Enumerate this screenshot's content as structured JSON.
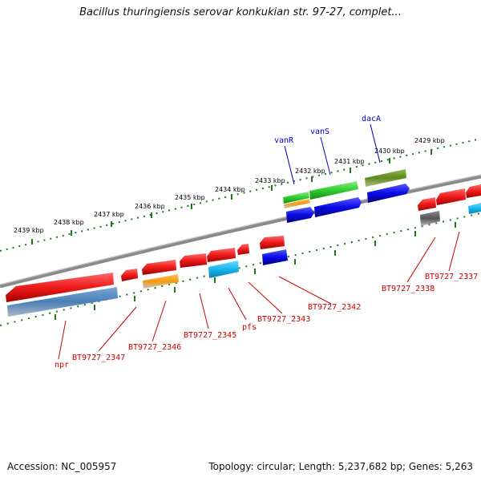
{
  "title": "Bacillus thuringiensis serovar konkukian str. 97-27, complet...",
  "accession_text": "Accession: NC_005957",
  "topology_text": "Topology: circular; Length: 5,237,682 bp; Genes: 5,263",
  "scale_labels": [
    "2439 kbp",
    "2438 kbp",
    "2437 kbp",
    "2436 kbp",
    "2435 kbp",
    "2434 kbp",
    "2433 kbp",
    "2432 kbp",
    "2431 kbp",
    "2430 kbp",
    "2429 kbp"
  ],
  "gene_labels": [
    {
      "text": "npr",
      "color": "#cc0000"
    },
    {
      "text": "BT9727_2347",
      "color": "#cc0000"
    },
    {
      "text": "BT9727_2346",
      "color": "#cc0000"
    },
    {
      "text": "BT9727_2345",
      "color": "#cc0000"
    },
    {
      "text": "pfs",
      "color": "#cc0000"
    },
    {
      "text": "BT9727_2343",
      "color": "#cc0000"
    },
    {
      "text": "BT9727_2342",
      "color": "#cc0000"
    },
    {
      "text": "BT9727_2338",
      "color": "#cc0000"
    },
    {
      "text": "BT9727_2337",
      "color": "#cc0000"
    },
    {
      "text": "vanR",
      "color": "#0000cc"
    },
    {
      "text": "vanS",
      "color": "#0000cc"
    },
    {
      "text": "dacA",
      "color": "#0000cc"
    }
  ],
  "feature_colors": {
    "red": "#e81010",
    "steelblue": "#4a7fb5",
    "orange": "#f39a10",
    "cyan": "#19b4ec",
    "blue": "#0a0ae6",
    "green": "#2fcc2f",
    "olive": "#5f8a1c",
    "gray": "#666666",
    "backbone": "#8a8a8a",
    "tick": "#1a7a1a"
  }
}
